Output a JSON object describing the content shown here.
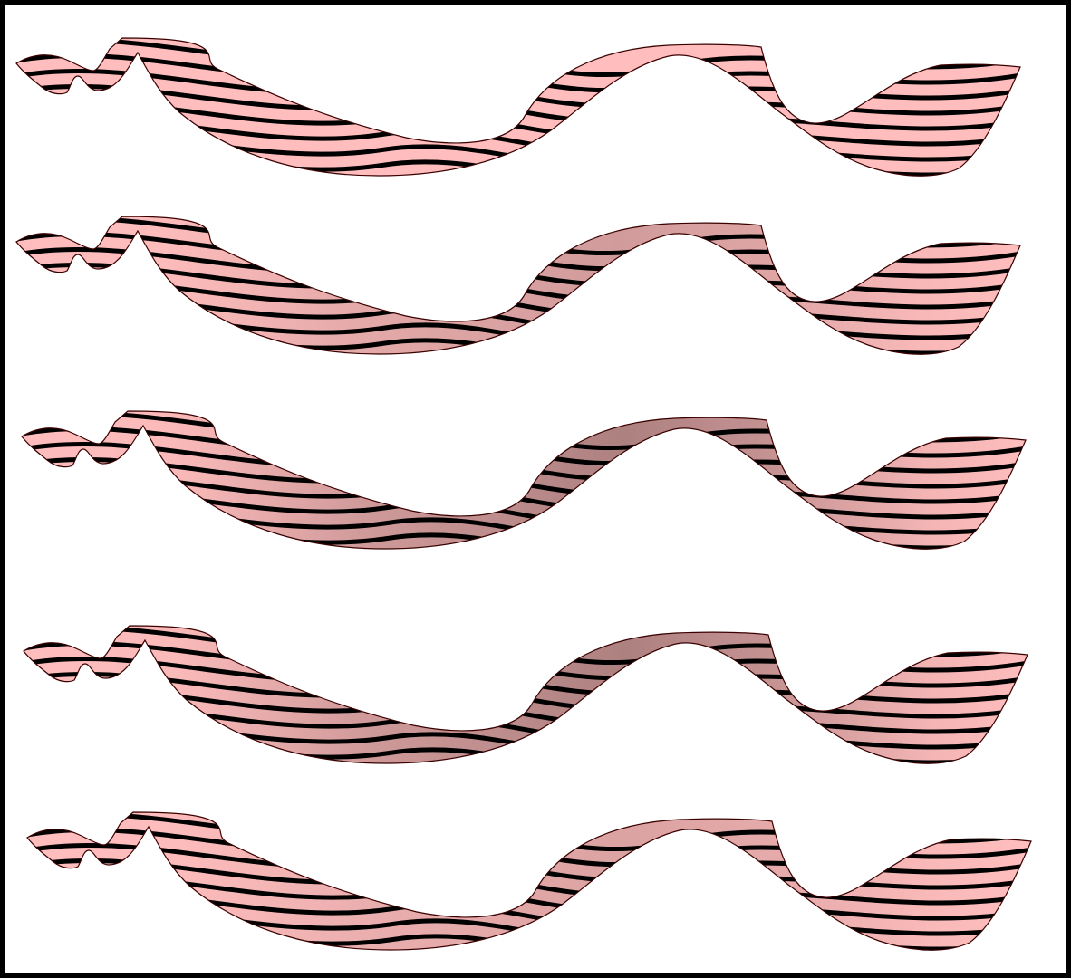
{
  "canvas": {
    "background": "#ffffff",
    "border_color": "#000000"
  },
  "ribbon_style": {
    "fill": "#ffbdbd",
    "outline": "#3a0000",
    "stripe_color": "#000000"
  },
  "ribbons": [
    {
      "shade_strength": 0.0
    },
    {
      "shade_strength": 0.18
    },
    {
      "shade_strength": 0.32
    },
    {
      "shade_strength": 0.32
    },
    {
      "shade_strength": 0.14
    }
  ]
}
